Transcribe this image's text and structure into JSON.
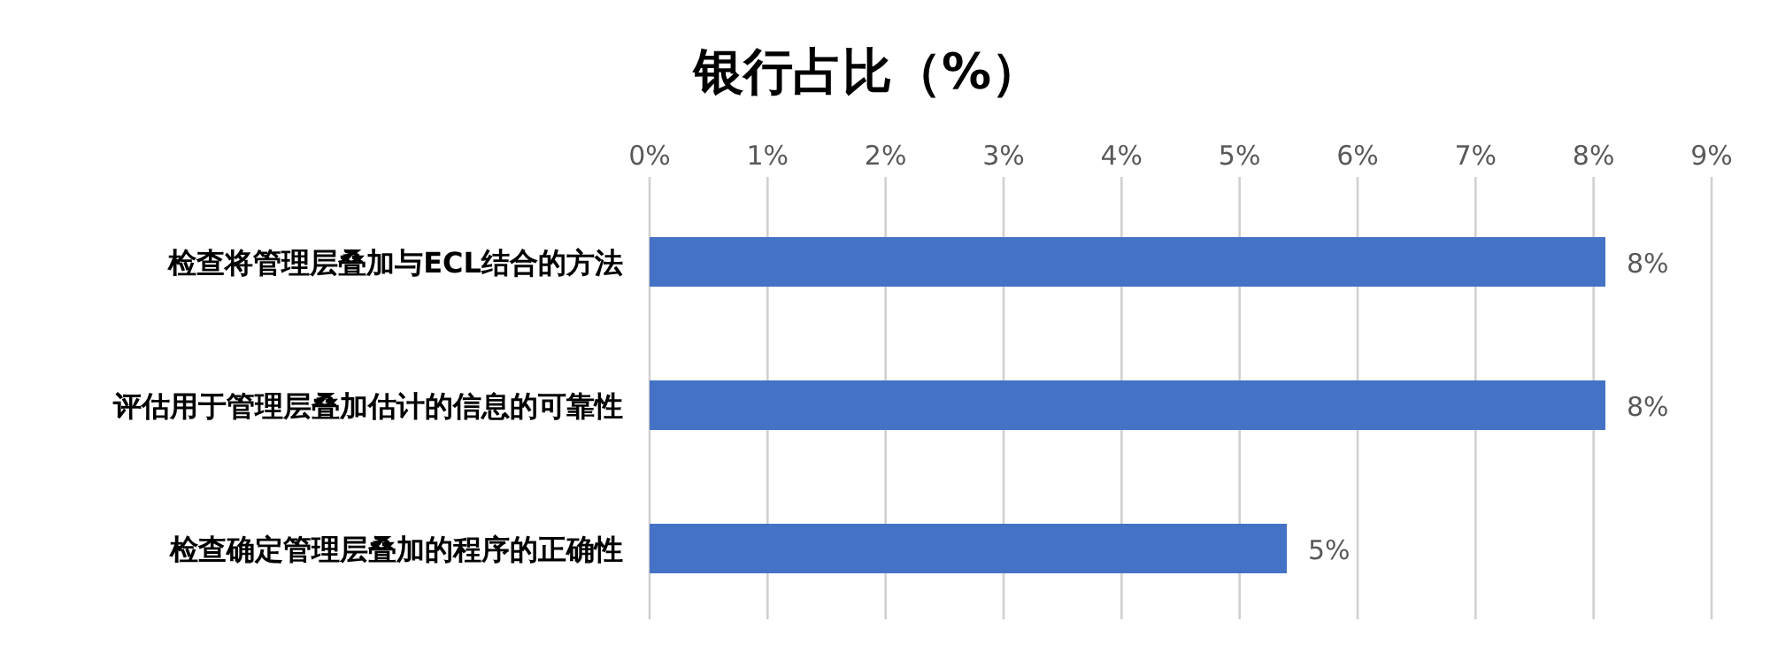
{
  "chart_data": {
    "type": "bar",
    "title": "银行占比（%）",
    "orientation": "horizontal",
    "categories": [
      "检查将管理层叠加与ECL结合的方法",
      "评估用于管理层叠加估计的信息的可靠性",
      "检查确定管理层叠加的程序的正确性"
    ],
    "values": [
      8.1,
      8.1,
      5.4
    ],
    "value_labels": [
      "8%",
      "8%",
      "5%"
    ],
    "color": "#4472c4",
    "xlim": [
      0,
      9
    ],
    "xticks": [
      {
        "value": 0,
        "label": "0%"
      },
      {
        "value": 1,
        "label": "1%"
      },
      {
        "value": 2,
        "label": "2%"
      },
      {
        "value": 3,
        "label": "3%"
      },
      {
        "value": 4,
        "label": "4%"
      },
      {
        "value": 5,
        "label": "5%"
      },
      {
        "value": 6,
        "label": "6%"
      },
      {
        "value": 7,
        "label": "7%"
      },
      {
        "value": 8,
        "label": "8%"
      },
      {
        "value": 9,
        "label": "9%"
      }
    ],
    "grid": "x"
  }
}
